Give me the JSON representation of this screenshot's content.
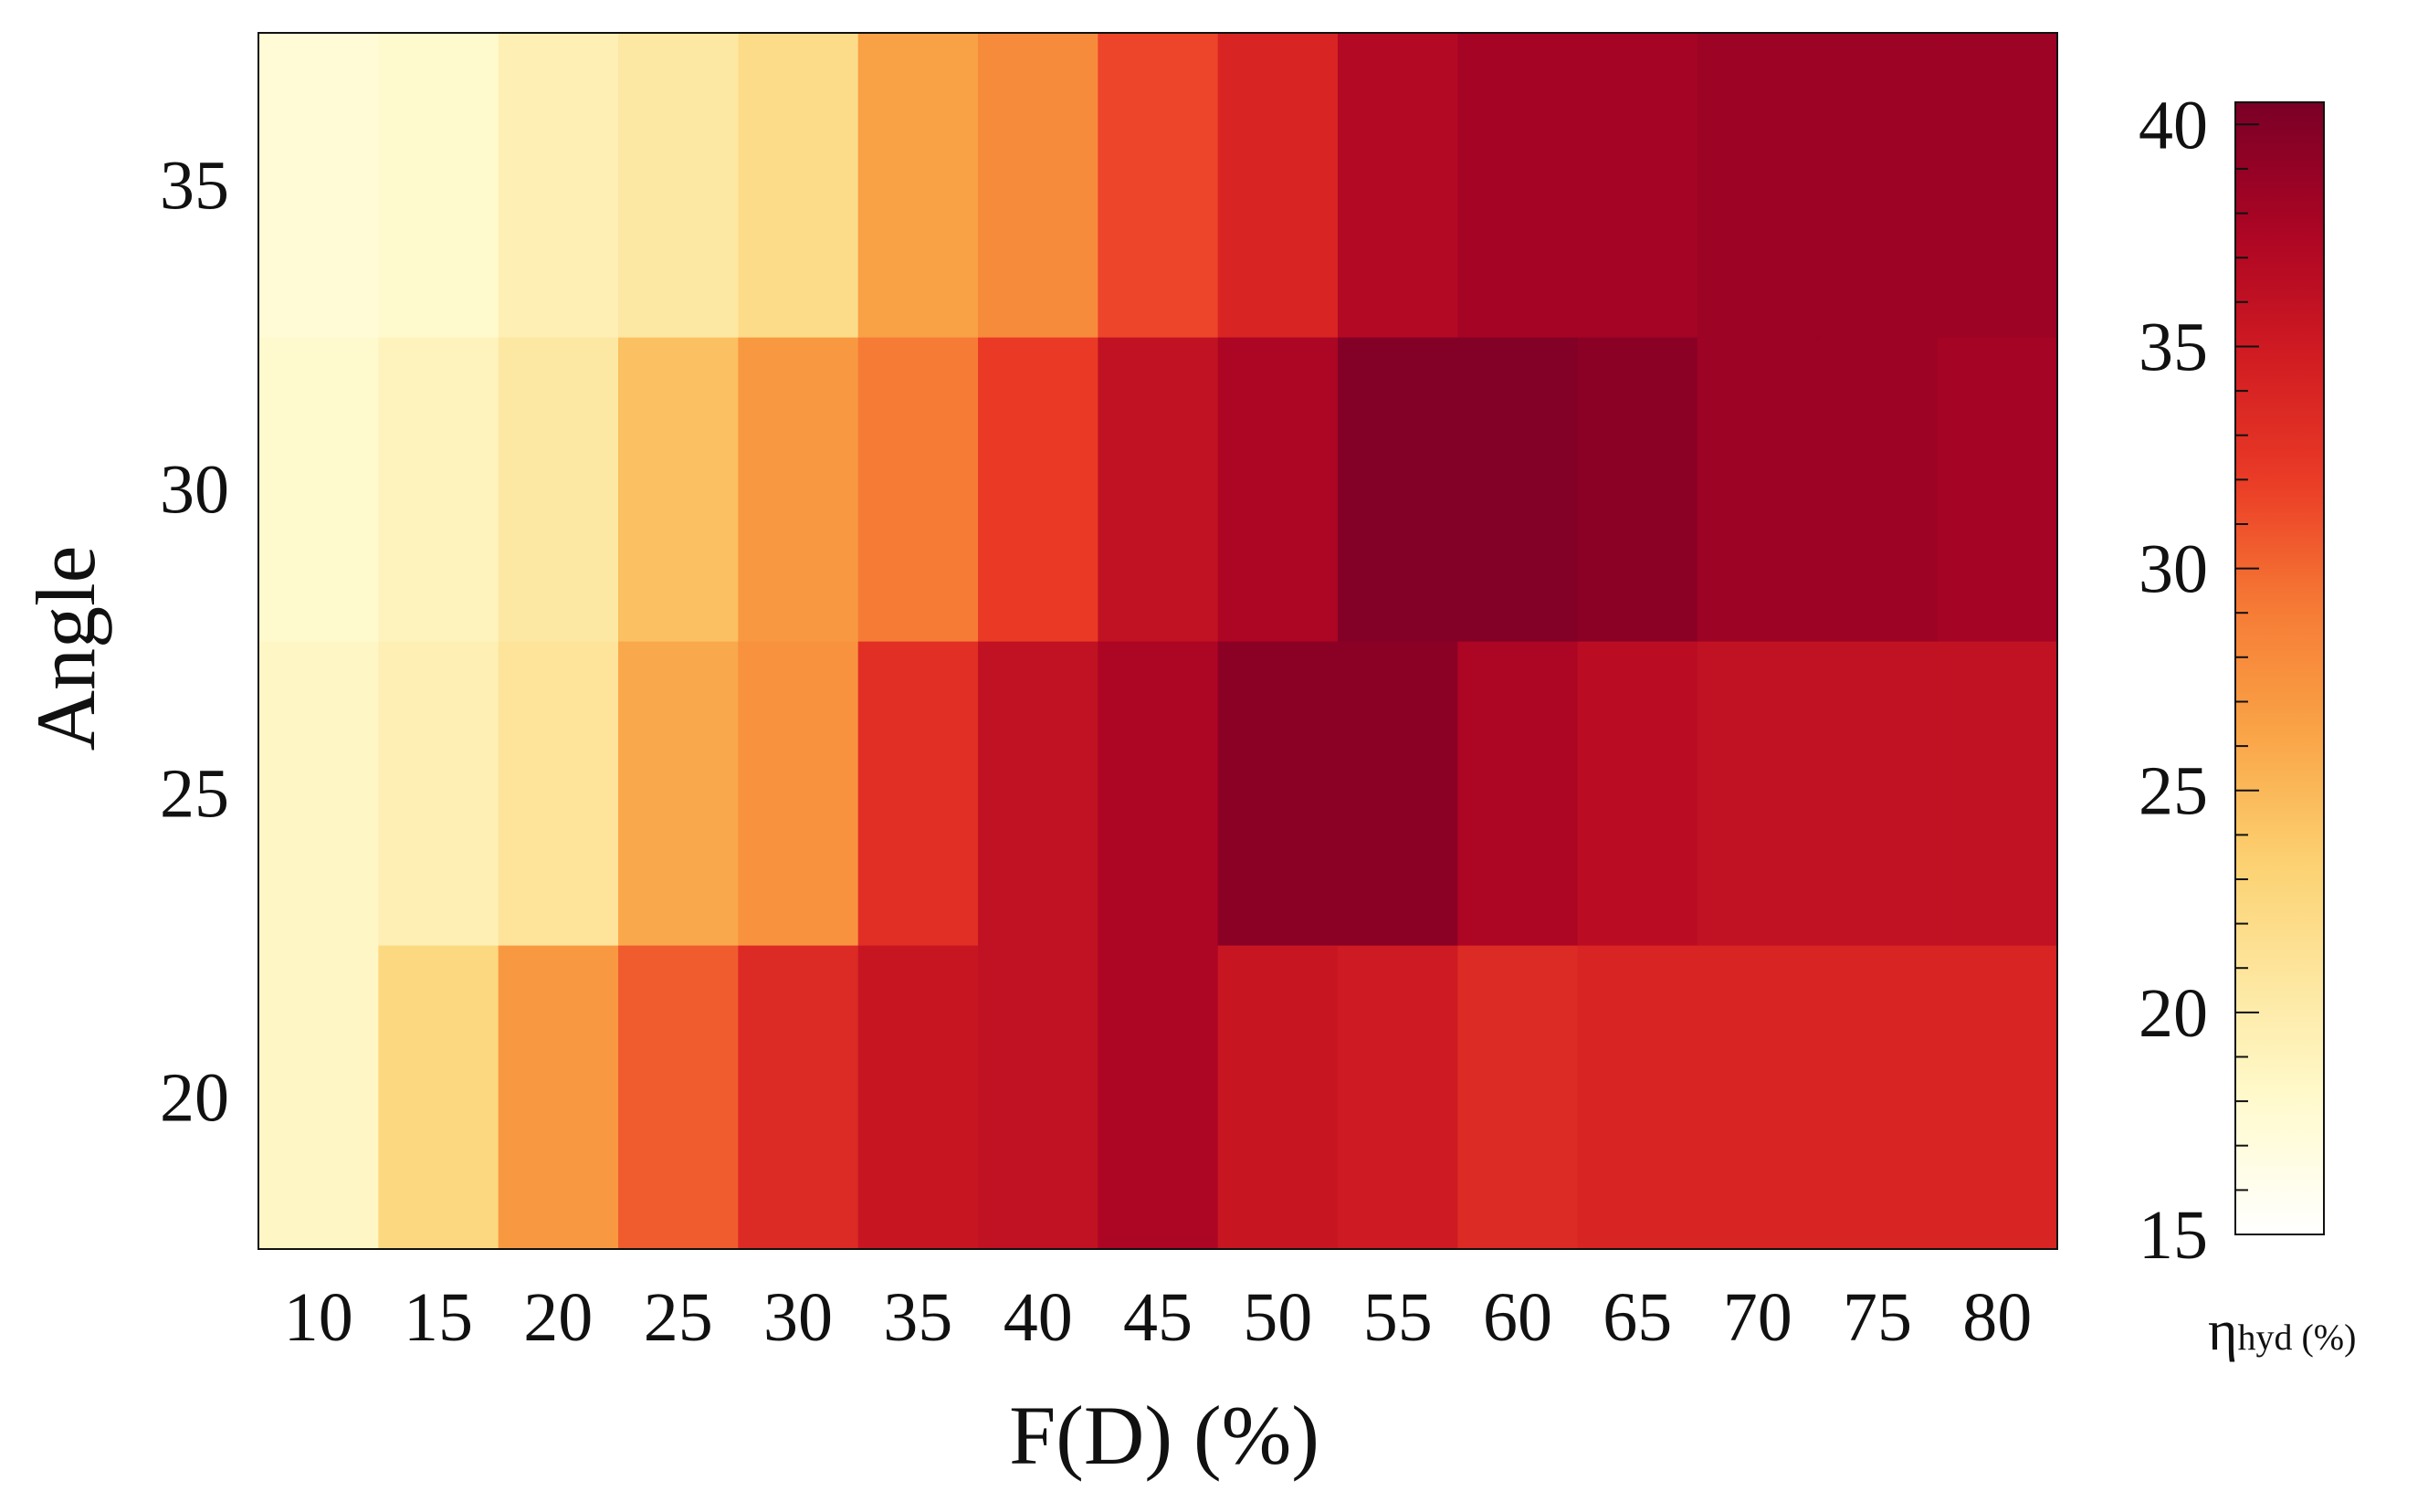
{
  "chart_data": {
    "type": "heatmap",
    "title": "",
    "xlabel": "F(D) (%)",
    "ylabel": "Angle",
    "x": [
      10,
      15,
      20,
      25,
      30,
      35,
      40,
      45,
      50,
      55,
      60,
      65,
      70,
      75,
      80
    ],
    "y": [
      20,
      25,
      30,
      35
    ],
    "x_tick_labels": [
      "10",
      "15",
      "20",
      "25",
      "30",
      "35",
      "40",
      "45",
      "50",
      "55",
      "60",
      "65",
      "70",
      "75",
      "80"
    ],
    "y_tick_labels": [
      "20",
      "25",
      "30",
      "35"
    ],
    "values": [
      [
        18.5,
        22.5,
        27.0,
        30.5,
        33.5,
        35.5,
        36.0,
        37.5,
        35.5,
        35.0,
        33.5,
        34.0,
        34.0,
        34.0,
        34.0
      ],
      [
        18.5,
        19.5,
        21.0,
        26.0,
        27.5,
        33.0,
        36.0,
        37.5,
        39.5,
        39.5,
        37.5,
        36.5,
        36.0,
        36.0,
        36.0
      ],
      [
        18.0,
        19.0,
        20.5,
        24.5,
        27.0,
        29.0,
        32.0,
        36.0,
        37.5,
        40.0,
        40.0,
        39.5,
        38.5,
        38.5,
        38.0
      ],
      [
        17.5,
        18.0,
        19.5,
        20.5,
        22.0,
        26.5,
        28.0,
        31.5,
        34.0,
        37.0,
        38.0,
        38.0,
        38.5,
        38.5,
        38.5
      ]
    ],
    "colorbar": {
      "label_main": "η",
      "label_sub": "hyd (%)",
      "min": 15,
      "max": 40.5,
      "ticks": [
        "15",
        "20",
        "25",
        "30",
        "35",
        "40"
      ],
      "tick_values": [
        15,
        20,
        25,
        30,
        35,
        40
      ],
      "colormap": [
        "#ffffff",
        "#fffbd0",
        "#fde7a0",
        "#fcd06f",
        "#f9a346",
        "#f67a35",
        "#ea3a26",
        "#d01b22",
        "#ab0424",
        "#7a0026"
      ]
    },
    "grid": false,
    "legend": "none"
  }
}
